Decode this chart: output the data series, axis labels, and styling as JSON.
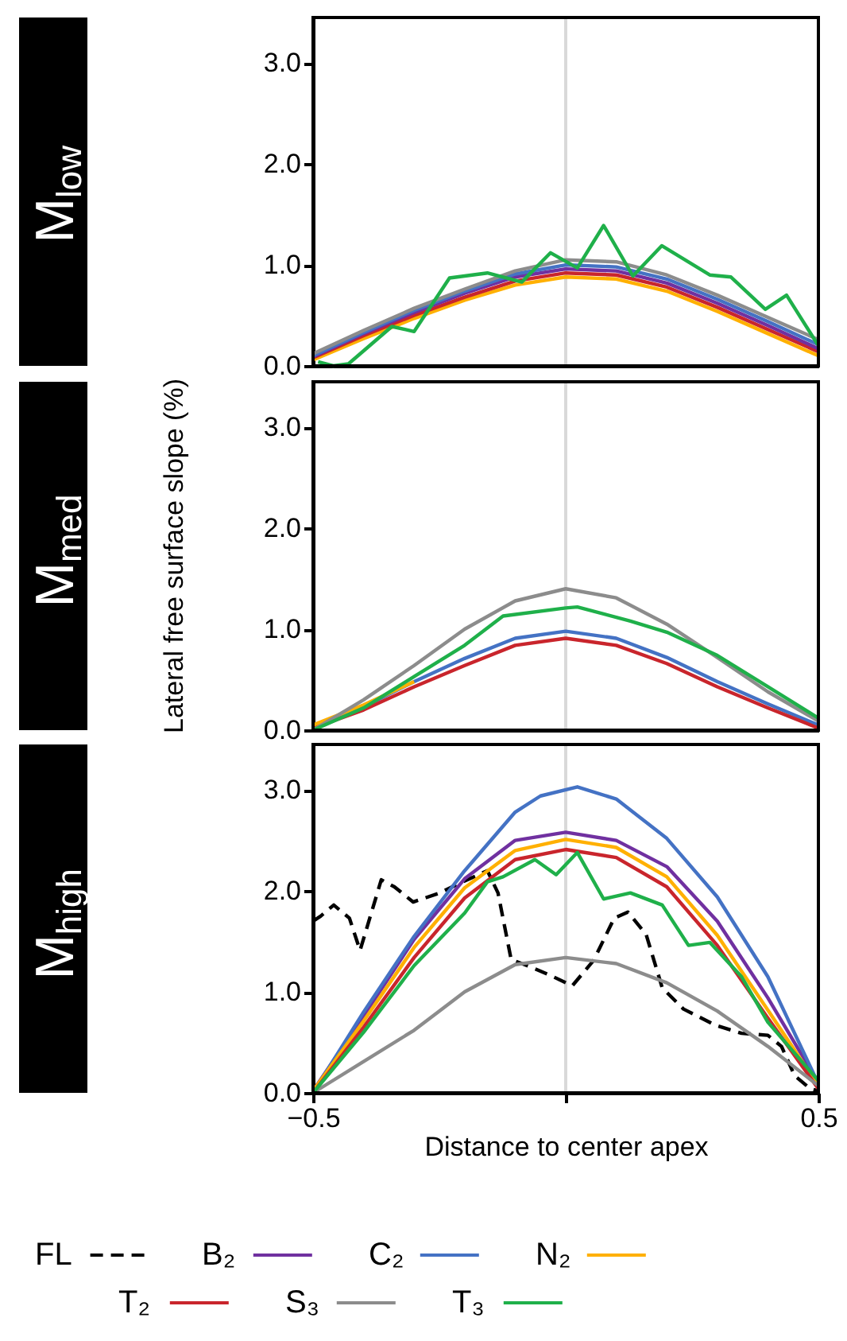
{
  "chart_data": [
    {
      "type": "line",
      "title": "M$_{low}$",
      "x": [
        -0.5,
        -0.4,
        -0.3,
        -0.2,
        -0.1,
        0,
        0.1,
        0.2,
        0.3,
        0.4,
        0.5
      ],
      "xlim": [
        -0.5,
        0.5
      ],
      "ylim": [
        0,
        3.45
      ],
      "yticks": [
        {
          "value": 0,
          "label": "0.0"
        },
        {
          "value": 1,
          "label": "1.0"
        },
        {
          "value": 2,
          "label": "2.0"
        },
        {
          "value": 3,
          "label": "3.0"
        }
      ],
      "tick_labels": "y",
      "grid": false,
      "legend": "bottom",
      "ref_lines": [
        {
          "axis": "x",
          "value": 0,
          "color": "#d9d9d9"
        }
      ],
      "series": [
        {
          "name": "N₂",
          "color": "#ffb000",
          "values": [
            0.06,
            0.27,
            0.47,
            0.65,
            0.8,
            0.88,
            0.86,
            0.74,
            0.54,
            0.32,
            0.1
          ]
        },
        {
          "name": "T₂",
          "color": "#c9252c",
          "values": [
            0.08,
            0.3,
            0.5,
            0.68,
            0.84,
            0.92,
            0.9,
            0.78,
            0.58,
            0.36,
            0.14
          ]
        },
        {
          "name": "B₂",
          "color": "#7030a0",
          "values": [
            0.09,
            0.32,
            0.53,
            0.72,
            0.88,
            0.96,
            0.94,
            0.82,
            0.62,
            0.4,
            0.17
          ]
        },
        {
          "name": "C₂",
          "color": "#4472c4",
          "values": [
            0.1,
            0.33,
            0.55,
            0.74,
            0.91,
            1.0,
            0.98,
            0.86,
            0.66,
            0.44,
            0.21
          ]
        },
        {
          "name": "S₃",
          "color": "#8c8c8c",
          "values": [
            0.12,
            0.35,
            0.57,
            0.76,
            0.94,
            1.05,
            1.03,
            0.9,
            0.7,
            0.48,
            0.26
          ]
        },
        {
          "name": "T₃",
          "color": "#1fb04a",
          "x": [
            -0.49,
            -0.46,
            -0.43,
            -0.344,
            -0.3,
            -0.23,
            -0.155,
            -0.087,
            -0.03,
            0.023,
            0.075,
            0.133,
            0.19,
            0.285,
            0.327,
            0.395,
            0.437,
            0.5
          ],
          "values": [
            0.04,
            0.0,
            0.02,
            0.39,
            0.34,
            0.87,
            0.92,
            0.83,
            1.12,
            0.97,
            1.39,
            0.89,
            1.19,
            0.9,
            0.88,
            0.56,
            0.7,
            0.2
          ]
        }
      ]
    },
    {
      "type": "line",
      "title": "M$_{med}$",
      "ylabel": "Lateral free surface slope (%)",
      "x": [
        -0.5,
        -0.4,
        -0.3,
        -0.2,
        -0.1,
        0,
        0.1,
        0.2,
        0.3,
        0.4,
        0.5
      ],
      "xlim": [
        -0.5,
        0.5
      ],
      "ylim": [
        0,
        3.45
      ],
      "yticks": [
        {
          "value": 0,
          "label": "0.0"
        },
        {
          "value": 1,
          "label": "1.0"
        },
        {
          "value": 2,
          "label": "2.0"
        },
        {
          "value": 3,
          "label": "3.0"
        }
      ],
      "tick_labels": "y",
      "grid": false,
      "legend": "bottom",
      "ref_lines": [
        {
          "axis": "x",
          "value": 0,
          "color": "#d9d9d9"
        }
      ],
      "series": [
        {
          "name": "C₂",
          "color": "#4472c4",
          "values": [
            0.03,
            0.23,
            0.48,
            0.71,
            0.91,
            0.98,
            0.91,
            0.72,
            0.48,
            0.26,
            0.05
          ]
        },
        {
          "name": "T₂",
          "color": "#c9252c",
          "values": [
            0.02,
            0.2,
            0.43,
            0.64,
            0.84,
            0.91,
            0.84,
            0.66,
            0.43,
            0.22,
            0.02
          ]
        },
        {
          "name": "N₂",
          "color": "#ffb000",
          "values": [
            0.05,
            0.25,
            0.48,
            null,
            null,
            null,
            null,
            null,
            null,
            null,
            null
          ]
        },
        {
          "name": "S₃",
          "color": "#8c8c8c",
          "values": [
            0.0,
            0.3,
            0.64,
            1.0,
            1.28,
            1.4,
            1.31,
            1.05,
            0.72,
            0.38,
            0.09
          ]
        },
        {
          "name": "T₃",
          "color": "#1fb04a",
          "x": [
            -0.5,
            -0.4,
            -0.3,
            -0.2,
            -0.124,
            0,
            0.023,
            0.128,
            0.2,
            0.3,
            0.4,
            0.5
          ],
          "values": [
            0.0,
            0.22,
            0.53,
            0.84,
            1.13,
            1.21,
            1.22,
            1.08,
            0.97,
            0.74,
            0.43,
            0.12
          ]
        }
      ]
    },
    {
      "type": "line",
      "title": "M$_{high}$",
      "xlabel": "Distance to center apex",
      "x": [
        -0.5,
        -0.4,
        -0.3,
        -0.2,
        -0.1,
        0,
        0.1,
        0.2,
        0.3,
        0.4,
        0.5
      ],
      "xlim": [
        -0.5,
        0.5
      ],
      "ylim": [
        0,
        3.45
      ],
      "xticks": [
        -0.5,
        {
          "value": 0,
          "label": null
        },
        0.5
      ],
      "yticks": [
        {
          "value": 0,
          "label": "0.0"
        },
        {
          "value": 1,
          "label": "1.0"
        },
        {
          "value": 2,
          "label": "2.0"
        },
        {
          "value": 3,
          "label": "3.0"
        }
      ],
      "grid": false,
      "legend": "bottom",
      "ref_lines": [
        {
          "axis": "x",
          "value": 0,
          "color": "#d9d9d9"
        }
      ],
      "series": [
        {
          "name": "FL",
          "color": "#000000",
          "line_style": "dashed",
          "x": [
            -0.5,
            -0.485,
            -0.459,
            -0.428,
            -0.407,
            -0.365,
            -0.339,
            -0.302,
            -0.249,
            -0.208,
            -0.155,
            -0.134,
            -0.108,
            -0.071,
            -0.029,
            0.013,
            0.055,
            0.096,
            0.123,
            0.159,
            0.191,
            0.233,
            0.296,
            0.348,
            0.4,
            0.427,
            0.453,
            0.484,
            0.5
          ],
          "values": [
            1.7,
            1.75,
            1.86,
            1.73,
            1.41,
            2.11,
            2.04,
            1.89,
            1.98,
            2.08,
            2.2,
            1.98,
            1.32,
            1.25,
            1.16,
            1.06,
            1.31,
            1.73,
            1.79,
            1.57,
            1.04,
            0.83,
            0.67,
            0.59,
            0.57,
            0.46,
            0.17,
            0.04,
            0.02
          ]
        },
        {
          "name": "B₂",
          "color": "#7030a0",
          "values": [
            0.02,
            0.76,
            1.52,
            2.12,
            2.5,
            2.58,
            2.5,
            2.24,
            1.7,
            0.94,
            0.1
          ]
        },
        {
          "name": "C₂",
          "color": "#4472c4",
          "x": [
            -0.5,
            -0.4,
            -0.3,
            -0.2,
            -0.1,
            -0.05,
            0.023,
            0.1,
            0.2,
            0.3,
            0.4,
            0.5
          ],
          "values": [
            0.0,
            0.8,
            1.55,
            2.2,
            2.78,
            2.94,
            3.03,
            2.91,
            2.52,
            1.94,
            1.15,
            0.09
          ]
        },
        {
          "name": "N₂",
          "color": "#ffb000",
          "values": [
            0.02,
            0.71,
            1.44,
            2.03,
            2.4,
            2.51,
            2.43,
            2.14,
            1.56,
            0.82,
            0.07
          ]
        },
        {
          "name": "T₂",
          "color": "#c9252c",
          "values": [
            0.0,
            0.65,
            1.34,
            1.93,
            2.31,
            2.41,
            2.33,
            2.04,
            1.46,
            0.74,
            0.04
          ]
        },
        {
          "name": "S₃",
          "color": "#8c8c8c",
          "values": [
            0.0,
            0.31,
            0.62,
            1.0,
            1.27,
            1.34,
            1.28,
            1.09,
            0.81,
            0.46,
            0.07
          ]
        },
        {
          "name": "T₃",
          "color": "#1fb04a",
          "x": [
            -0.5,
            -0.4,
            -0.3,
            -0.2,
            -0.155,
            -0.124,
            -0.061,
            -0.019,
            0.023,
            0.075,
            0.128,
            0.191,
            0.243,
            0.285,
            0.348,
            0.4,
            0.5
          ],
          "values": [
            0.0,
            0.6,
            1.26,
            1.78,
            2.09,
            2.14,
            2.31,
            2.16,
            2.38,
            1.92,
            1.98,
            1.86,
            1.46,
            1.49,
            1.15,
            0.7,
            0.12
          ]
        }
      ]
    }
  ]
}
